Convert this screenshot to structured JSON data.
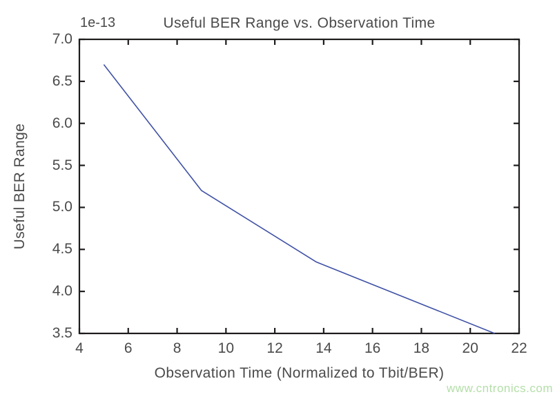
{
  "figure": {
    "background_color": "#ffffff",
    "text_color": "#4a4a4a",
    "axis_color": "#1e1b1b"
  },
  "chart_data": {
    "type": "line",
    "title": "Useful BER Range vs. Observation Time",
    "xlabel": "Observation Time (Normalized to Tbit/BER)",
    "ylabel": "Useful BER Range",
    "y_offset_label": "1e-13",
    "x": [
      5.0,
      9.0,
      13.7,
      21.0
    ],
    "y": [
      6.7,
      5.2,
      4.35,
      3.5
    ],
    "xlim": [
      4,
      22
    ],
    "ylim": [
      3.5,
      7.0
    ],
    "x_ticks": [
      4,
      6,
      8,
      10,
      12,
      14,
      16,
      18,
      20,
      22
    ],
    "y_ticks": [
      3.5,
      4.0,
      4.5,
      5.0,
      5.5,
      6.0,
      6.5,
      7.0
    ],
    "x_tick_labels": [
      "4",
      "6",
      "8",
      "10",
      "12",
      "14",
      "16",
      "18",
      "20",
      "22"
    ],
    "y_tick_labels": [
      "3.5",
      "4.0",
      "4.5",
      "5.0",
      "5.5",
      "6.0",
      "6.5",
      "7.0"
    ],
    "grid": false,
    "legend": null,
    "tick_direction": "in",
    "frame": "box",
    "line_color": "#3f51a5"
  },
  "watermark": {
    "text": "www.cntronics.com",
    "color": "#b3dfa8"
  }
}
